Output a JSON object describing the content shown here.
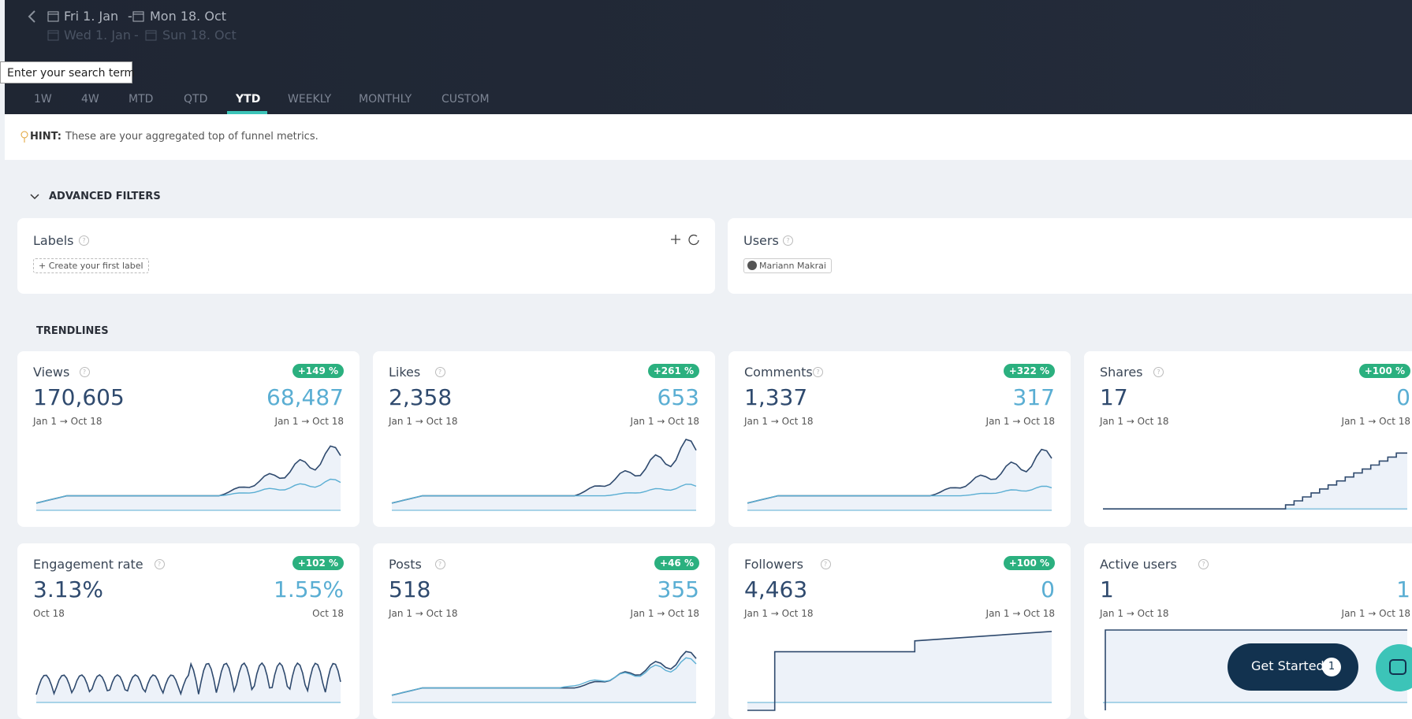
{
  "header": {
    "date_range": {
      "start": "Fri 1. Jan",
      "end": "Mon 18. Oct"
    },
    "compare_range": {
      "start": "Wed 1. Jan",
      "end": "Sun 18. Oct"
    },
    "separator": "-",
    "search_placeholder": "Enter your search term",
    "tabs": [
      "1W",
      "4W",
      "MTD",
      "QTD",
      "YTD",
      "WEEKLY",
      "MONTHLY",
      "CUSTOM"
    ],
    "active_tab": "YTD"
  },
  "hint": {
    "label": "HINT:",
    "text": "These are your aggregated top of funnel metrics."
  },
  "filters": {
    "title": "ADVANCED FILTERS",
    "labels": {
      "title": "Labels",
      "action": "Create your first label"
    },
    "users": {
      "title": "Users",
      "selected": "Mariann Makrai"
    }
  },
  "trendlines": {
    "title": "TRENDLINES",
    "cards": [
      {
        "title": "Views",
        "value": "170,605",
        "compare": "68,487",
        "change": "+149 %",
        "period": "Jan 1 → Oct 18",
        "compare_period": "Jan 1 → Oct 18"
      },
      {
        "title": "Likes",
        "value": "2,358",
        "compare": "653",
        "change": "+261 %",
        "period": "Jan 1 → Oct 18",
        "compare_period": "Jan 1 → Oct 18"
      },
      {
        "title": "Comments",
        "value": "1,337",
        "compare": "317",
        "change": "+322 %",
        "period": "Jan 1 → Oct 18",
        "compare_period": "Jan 1 → Oct 18"
      },
      {
        "title": "Shares",
        "value": "17",
        "compare": "0",
        "change": "+100 %",
        "period": "Jan 1 → Oct 18",
        "compare_period": "Jan 1 → Oct 18"
      },
      {
        "title": "Engagement rate",
        "value": "3.13%",
        "compare": "1.55%",
        "change": "+102 %",
        "period": "Oct 18",
        "compare_period": "Oct 18"
      },
      {
        "title": "Posts",
        "value": "518",
        "compare": "355",
        "change": "+46 %",
        "period": "Jan 1 → Oct 18",
        "compare_period": "Jan 1 → Oct 18"
      },
      {
        "title": "Followers",
        "value": "4,463",
        "compare": "0",
        "change": "+100 %",
        "period": "Jan 1 → Oct 18",
        "compare_period": "Jan 1 → Oct 18"
      },
      {
        "title": "Active users",
        "value": "1",
        "compare": "1",
        "period": "Jan 1 → Oct 18",
        "compare_period": "Jan 1 → Oct 18"
      }
    ]
  },
  "cta": {
    "label": "Get Started",
    "count": 1
  }
}
